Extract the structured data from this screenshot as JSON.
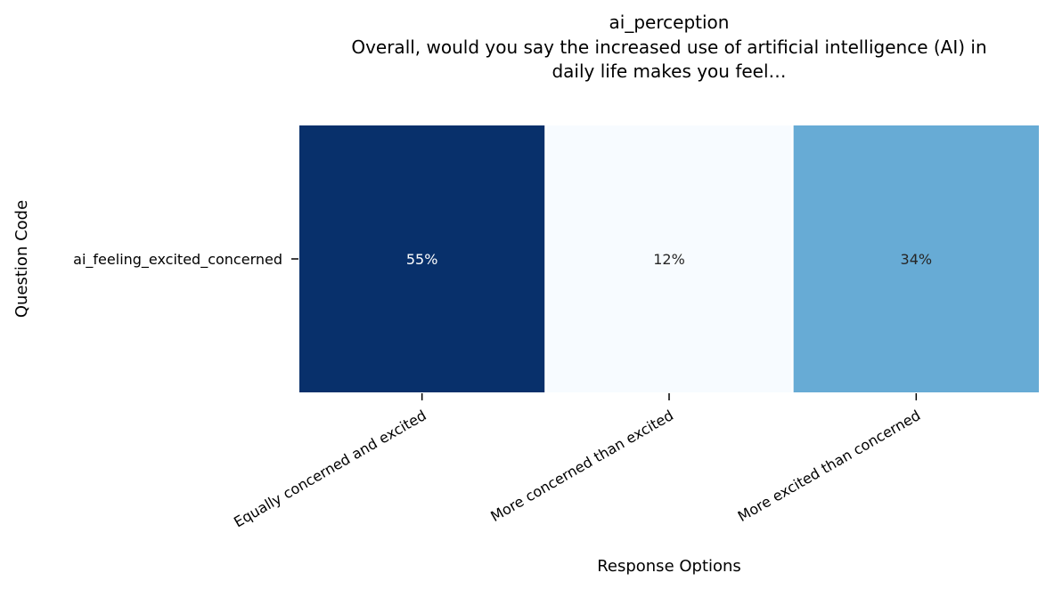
{
  "chart_data": {
    "type": "heatmap",
    "title_lines": [
      "ai_perception",
      "Overall, would you say the increased use of artificial intelligence (AI) in",
      "daily life makes you feel…"
    ],
    "xlabel": "Response Options",
    "ylabel": "Question Code",
    "rows": [
      "ai_feeling_excited_concerned"
    ],
    "columns": [
      "Equally concerned and excited",
      "More concerned than excited",
      "More excited than concerned"
    ],
    "values": [
      [
        55,
        12,
        34
      ]
    ],
    "value_labels": [
      [
        "55%",
        "12%",
        "34%"
      ]
    ],
    "colormap": "Blues",
    "color_range": [
      12,
      55
    ],
    "colorbar": false
  }
}
